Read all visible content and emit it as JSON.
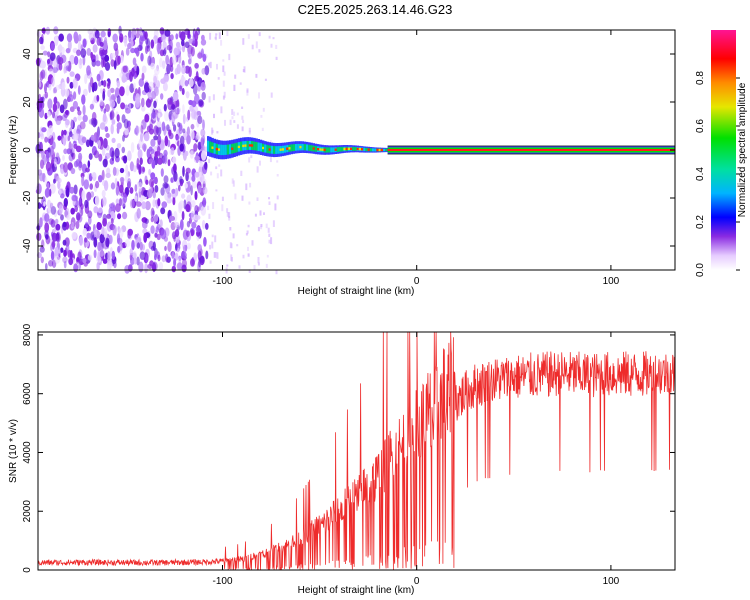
{
  "title": "C2E5.2025.263.14.46.G23",
  "chart_data": [
    {
      "type": "heatmap",
      "title": "C2E5.2025.263.14.46.G23",
      "xlabel": "Height of straight line (km)",
      "ylabel": "Frequency (Hz)",
      "xlim": [
        -195,
        133
      ],
      "ylim": [
        -50,
        50
      ],
      "xticks": [
        -100,
        0,
        100
      ],
      "yticks": [
        -40,
        -20,
        0,
        20,
        40
      ],
      "noise_region_x": [
        -195,
        -108
      ],
      "signal_line_freq": 0,
      "colorbar": {
        "label": "Normalized spectral amplitude",
        "range": [
          0,
          1
        ],
        "ticks": [
          0,
          0.2,
          0.4,
          0.6,
          0.8
        ],
        "tick_labels": [
          "0.0",
          "0.2",
          "0.4",
          "0.6",
          "0.8"
        ]
      }
    },
    {
      "type": "line",
      "xlabel": "Height of straight line (km)",
      "ylabel": "SNR (10 * v/v)",
      "xlim": [
        -195,
        133
      ],
      "ylim": [
        0,
        8100
      ],
      "xticks": [
        -100,
        0,
        100
      ],
      "yticks": [
        0,
        2000,
        4000,
        6000,
        8000
      ],
      "color": "#ee2c2c",
      "series": [
        {
          "name": "SNR",
          "x": [
            -195,
            -170,
            -150,
            -130,
            -110,
            -100,
            -90,
            -80,
            -70,
            -60,
            -50,
            -40,
            -30,
            -20,
            -10,
            0,
            10,
            20,
            30,
            40,
            50,
            60,
            70,
            80,
            90,
            100,
            110,
            120,
            133
          ],
          "values": [
            250,
            260,
            250,
            250,
            270,
            300,
            350,
            500,
            700,
            1000,
            1400,
            1900,
            2400,
            3000,
            3800,
            4500,
            5300,
            6000,
            6500,
            6700,
            6800,
            6850,
            6900,
            6900,
            6850,
            6900,
            6900,
            6900,
            6950
          ]
        }
      ]
    }
  ]
}
